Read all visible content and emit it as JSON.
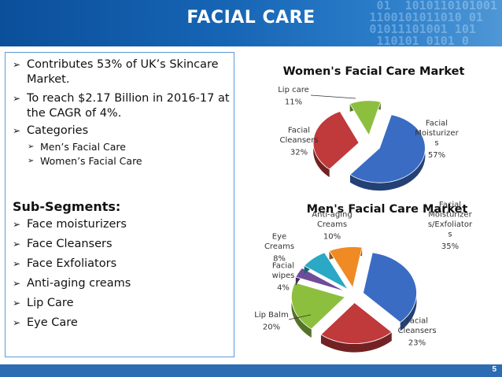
{
  "header": {
    "title": "FACIAL CARE"
  },
  "left_panel": {
    "bullets": [
      {
        "lines": [
          "Contributes 53% of UK’s Skincare",
          "Market."
        ]
      },
      {
        "lines": [
          "To reach $2.17 Billion in 2016-17 at",
          "the CAGR of 4%."
        ]
      },
      {
        "lines": [
          "Categories"
        ]
      }
    ],
    "sub_bullets": [
      "Men’s Facial Care",
      "Women’s Facial Care"
    ],
    "subsegments_heading": "Sub-Segments:",
    "subsegments": [
      "Face moisturizers",
      "Face Cleansers",
      "Face Exfoliators",
      "Anti-aging creams",
      "Lip Care",
      "Eye Care"
    ]
  },
  "footer": {
    "page_number": "5"
  },
  "chart_data": [
    {
      "type": "pie",
      "title": "Women's Facial Care Market",
      "slices": [
        {
          "label_lines": [
            "Facial",
            "Moisturizer",
            "s"
          ],
          "value": 57,
          "value_label": "57%",
          "color": "#3a6cc4"
        },
        {
          "label_lines": [
            "Facial",
            "Cleansers"
          ],
          "value": 32,
          "value_label": "32%",
          "color": "#c0393b"
        },
        {
          "label_lines": [
            "Lip care"
          ],
          "value": 11,
          "value_label": "11%",
          "color": "#8dbf3f"
        }
      ]
    },
    {
      "type": "pie",
      "title": "Men's Facial Care Market",
      "slices": [
        {
          "label_lines": [
            "Facial",
            "Moisturizer",
            "s/Exfoliator",
            "s"
          ],
          "value": 35,
          "value_label": "35%",
          "color": "#3a6cc4"
        },
        {
          "label_lines": [
            "Facial",
            "Cleansers"
          ],
          "value": 23,
          "value_label": "23%",
          "color": "#c0393b"
        },
        {
          "label_lines": [
            "Lip Balm"
          ],
          "value": 20,
          "value_label": "20%",
          "color": "#8dbf3f"
        },
        {
          "label_lines": [
            "Facial",
            "wipes"
          ],
          "value": 4,
          "value_label": "4%",
          "color": "#6e4c9a"
        },
        {
          "label_lines": [
            "Eye",
            "Creams"
          ],
          "value": 8,
          "value_label": "8%",
          "color": "#2aa8c6"
        },
        {
          "label_lines": [
            "Anti-aging",
            "Creams"
          ],
          "value": 10,
          "value_label": "10%",
          "color": "#f08a24"
        }
      ]
    }
  ]
}
